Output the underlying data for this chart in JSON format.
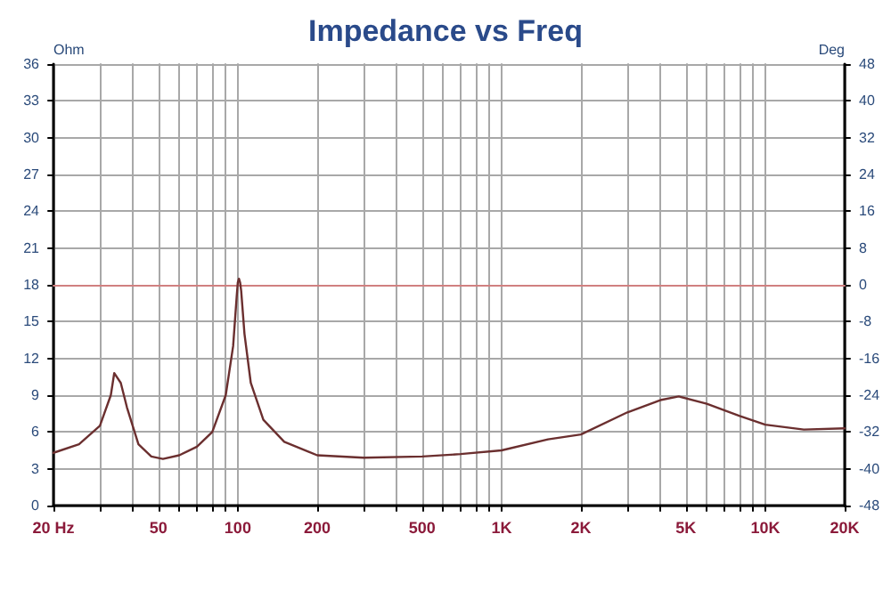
{
  "chart_data": {
    "type": "line",
    "title": "Impedance vs Freq",
    "ylabel": "Ohm",
    "y2label": "Deg",
    "x": [
      20,
      25,
      30,
      33,
      34,
      36,
      38,
      42,
      47,
      52,
      60,
      70,
      80,
      90,
      96,
      99,
      100,
      101,
      102,
      103,
      106,
      112,
      125,
      150,
      200,
      300,
      500,
      700,
      1000,
      1500,
      2000,
      3000,
      4000,
      4700,
      6000,
      8000,
      10000,
      14000,
      20000
    ],
    "series": [
      {
        "color": "#6b2f2f",
        "values": [
          4.3,
          5.0,
          6.5,
          9.0,
          10.8,
          10.0,
          8.0,
          5.0,
          4.0,
          3.8,
          4.1,
          4.8,
          6.0,
          9.0,
          13.0,
          17.0,
          18.2,
          18.5,
          18.2,
          17.5,
          14.0,
          10.0,
          7.0,
          5.2,
          4.1,
          3.9,
          4.0,
          4.2,
          4.5,
          5.4,
          5.8,
          7.6,
          8.6,
          8.9,
          8.3,
          7.3,
          6.6,
          6.2,
          6.3
        ]
      }
    ],
    "log": "x",
    "xlim": [
      20,
      20000
    ],
    "xticks": [
      {
        "value": 20,
        "label": "20 Hz"
      },
      {
        "value": 30,
        "label": null
      },
      {
        "value": 40,
        "label": null
      },
      50,
      {
        "value": 60,
        "label": null
      },
      {
        "value": 70,
        "label": null
      },
      {
        "value": 80,
        "label": null
      },
      {
        "value": 90,
        "label": null
      },
      100,
      200,
      {
        "value": 300,
        "label": null
      },
      {
        "value": 400,
        "label": null
      },
      500,
      {
        "value": 600,
        "label": null
      },
      {
        "value": 700,
        "label": null
      },
      {
        "value": 800,
        "label": null
      },
      {
        "value": 900,
        "label": null
      },
      {
        "value": 1000,
        "label": "1K"
      },
      {
        "value": 2000,
        "label": "2K"
      },
      {
        "value": 3000,
        "label": null
      },
      {
        "value": 4000,
        "label": null
      },
      {
        "value": 5000,
        "label": "5K"
      },
      {
        "value": 6000,
        "label": null
      },
      {
        "value": 7000,
        "label": null
      },
      {
        "value": 8000,
        "label": null
      },
      {
        "value": 9000,
        "label": null
      },
      {
        "value": 10000,
        "label": "10K"
      },
      {
        "value": 20000,
        "label": "20K"
      }
    ],
    "ylim": [
      0,
      36
    ],
    "yticks": [
      0,
      3,
      6,
      9,
      12,
      15,
      18,
      21,
      24,
      27,
      30,
      33,
      36
    ],
    "y2lim": [
      -48,
      48
    ],
    "y2ticks": [
      -48,
      -40,
      -32,
      -24,
      -16,
      -8,
      0,
      8,
      16,
      24,
      32,
      40,
      48
    ],
    "ref_lines": [
      {
        "axis": "y2",
        "value": 0,
        "color": "#d08080"
      }
    ],
    "grid": true,
    "marker": "none",
    "line_style": "solid"
  }
}
